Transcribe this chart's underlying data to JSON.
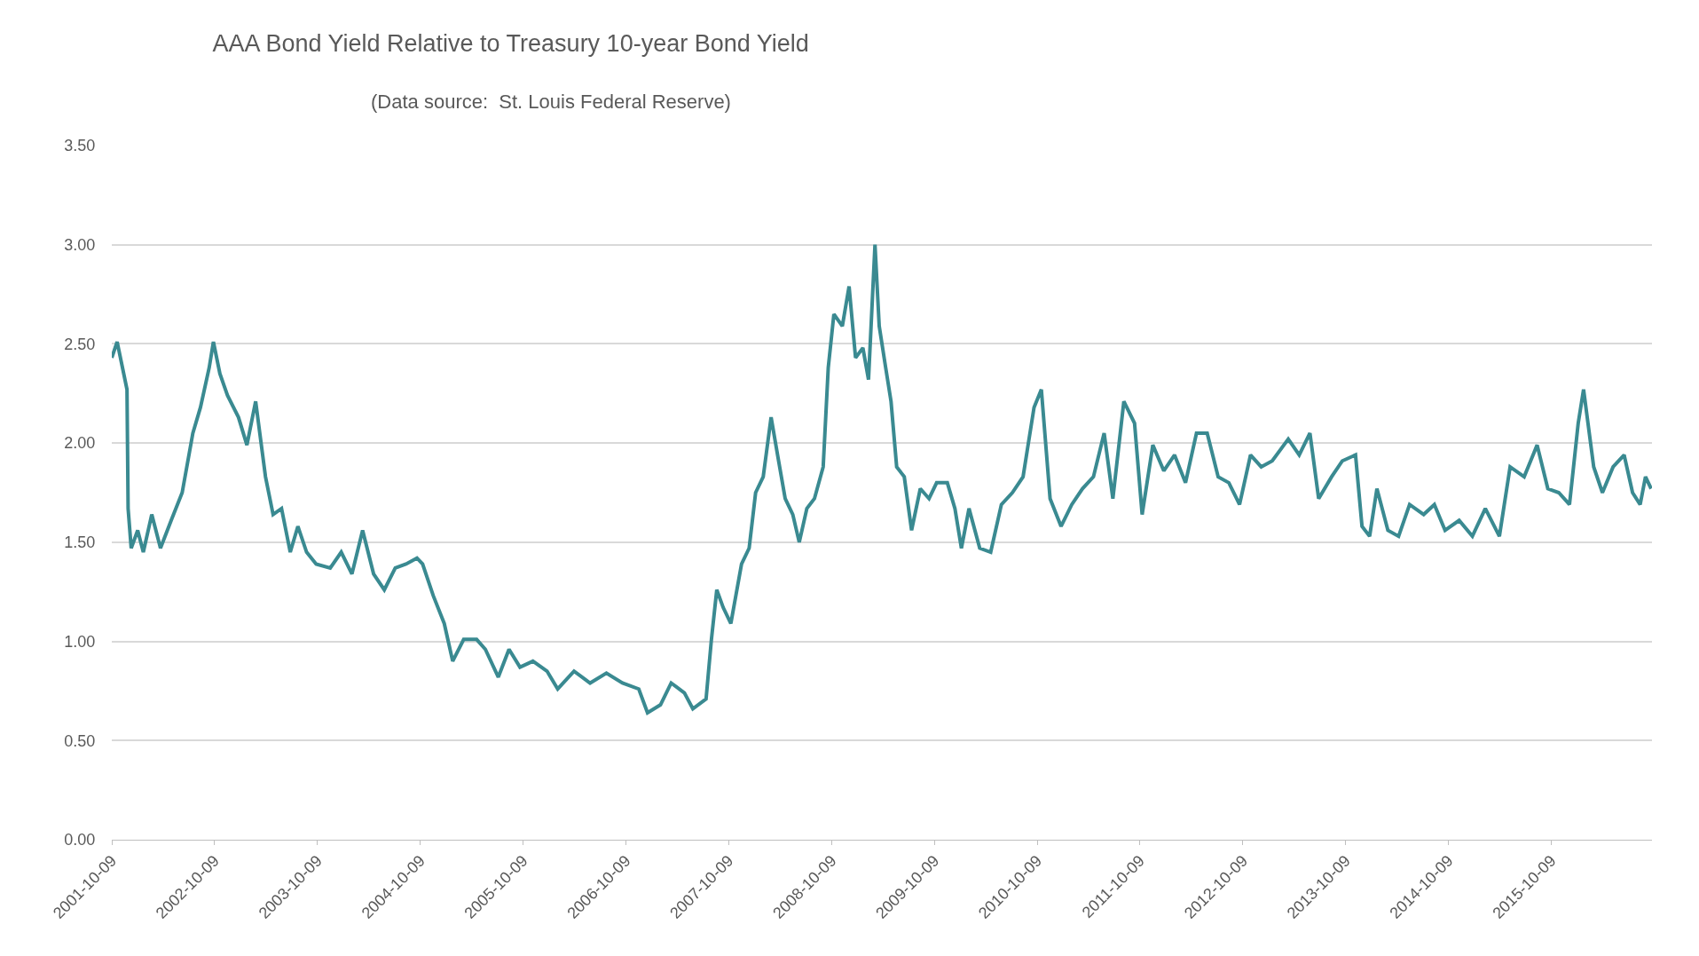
{
  "chart_data": {
    "type": "line",
    "title": "AAA Bond Yield Relative to Treasury 10-year Bond Yield",
    "subtitle": "(Data source:  St. Louis Federal Reserve)",
    "x": [
      "2001-10-09",
      "2001-10-28",
      "2001-11-16",
      "2001-12-02",
      "2001-12-06",
      "2001-12-17",
      "2002-01-09",
      "2002-01-29",
      "2002-02-28",
      "2002-03-31",
      "2002-05-08",
      "2002-06-16",
      "2002-07-24",
      "2002-08-20",
      "2002-09-20",
      "2002-10-05",
      "2002-10-28",
      "2002-11-24",
      "2003-01-02",
      "2003-02-01",
      "2003-03-04",
      "2003-04-08",
      "2003-05-05",
      "2003-06-04",
      "2003-07-05",
      "2003-08-01",
      "2003-09-01",
      "2003-10-05",
      "2003-11-24",
      "2004-01-02",
      "2004-02-09",
      "2004-03-18",
      "2004-04-26",
      "2004-06-03",
      "2004-07-12",
      "2004-08-19",
      "2004-09-27",
      "2004-10-17",
      "2004-11-24",
      "2005-01-02",
      "2005-02-01",
      "2005-03-12",
      "2005-04-27",
      "2005-05-28",
      "2005-07-13",
      "2005-08-20",
      "2005-09-28",
      "2005-11-13",
      "2006-01-02",
      "2006-02-09",
      "2006-04-08",
      "2006-06-04",
      "2006-08-01",
      "2006-09-27",
      "2006-11-24",
      "2006-12-25",
      "2007-02-09",
      "2007-03-19",
      "2007-05-05",
      "2007-06-04",
      "2007-07-21",
      "2007-08-09",
      "2007-08-28",
      "2007-09-20",
      "2007-10-17",
      "2007-11-24",
      "2007-12-21",
      "2008-01-13",
      "2008-02-09",
      "2008-03-08",
      "2008-03-31",
      "2008-04-27",
      "2008-05-24",
      "2008-06-16",
      "2008-07-13",
      "2008-08-09",
      "2008-09-09",
      "2008-09-27",
      "2008-10-17",
      "2008-11-16",
      "2008-12-10",
      "2009-01-02",
      "2009-01-28",
      "2009-02-17",
      "2009-03-12",
      "2009-03-27",
      "2009-04-19",
      "2009-05-08",
      "2009-05-28",
      "2009-06-24",
      "2009-07-20",
      "2009-08-20",
      "2009-09-20",
      "2009-10-17",
      "2009-11-24",
      "2009-12-21",
      "2010-01-13",
      "2010-02-09",
      "2010-03-19",
      "2010-04-27",
      "2010-06-04",
      "2010-07-13",
      "2010-08-20",
      "2010-09-28",
      "2010-10-24",
      "2010-11-24",
      "2011-01-02",
      "2011-02-09",
      "2011-03-19",
      "2011-04-27",
      "2011-06-04",
      "2011-07-05",
      "2011-08-13",
      "2011-09-20",
      "2011-10-17",
      "2011-11-24",
      "2012-01-02",
      "2012-02-09",
      "2012-03-19",
      "2012-04-27",
      "2012-06-04",
      "2012-07-13",
      "2012-08-20",
      "2012-09-27",
      "2012-11-05",
      "2012-12-13",
      "2013-01-21",
      "2013-03-19",
      "2013-04-27",
      "2013-06-04",
      "2013-07-05",
      "2013-08-20",
      "2013-09-27",
      "2013-11-13",
      "2013-12-06",
      "2014-01-02",
      "2014-01-28",
      "2014-03-08",
      "2014-04-15",
      "2014-05-24",
      "2014-07-13",
      "2014-08-20",
      "2014-09-27",
      "2014-11-16",
      "2015-01-02",
      "2015-02-17",
      "2015-04-08",
      "2015-05-16",
      "2015-07-05",
      "2015-08-20",
      "2015-09-27",
      "2015-11-05",
      "2015-12-13",
      "2016-01-13",
      "2016-02-01",
      "2016-03-08",
      "2016-04-08",
      "2016-05-16",
      "2016-06-24",
      "2016-07-24",
      "2016-08-20",
      "2016-09-08",
      "2016-09-28"
    ],
    "series": [
      {
        "color": "#3a8a91",
        "values": [
          2.43,
          2.51,
          2.38,
          2.27,
          1.67,
          1.47,
          1.56,
          1.45,
          1.64,
          1.47,
          1.61,
          1.75,
          2.05,
          2.18,
          2.38,
          2.51,
          2.35,
          2.24,
          2.13,
          1.99,
          2.21,
          1.83,
          1.64,
          1.67,
          1.45,
          1.58,
          1.45,
          1.39,
          1.37,
          1.45,
          1.34,
          1.56,
          1.34,
          1.26,
          1.37,
          1.39,
          1.42,
          1.39,
          1.23,
          1.09,
          0.9,
          1.01,
          1.01,
          0.96,
          0.82,
          0.96,
          0.87,
          0.9,
          0.85,
          0.76,
          0.85,
          0.79,
          0.84,
          0.79,
          0.76,
          0.64,
          0.68,
          0.79,
          0.74,
          0.66,
          0.71,
          1.01,
          1.26,
          1.17,
          1.09,
          1.39,
          1.47,
          1.75,
          1.83,
          2.13,
          1.94,
          1.72,
          1.64,
          1.5,
          1.67,
          1.72,
          1.88,
          2.38,
          2.65,
          2.59,
          2.79,
          2.43,
          2.48,
          2.32,
          3.0,
          2.59,
          2.38,
          2.21,
          1.88,
          1.83,
          1.56,
          1.77,
          1.72,
          1.8,
          1.8,
          1.67,
          1.47,
          1.67,
          1.47,
          1.45,
          1.69,
          1.75,
          1.83,
          2.18,
          2.27,
          1.72,
          1.58,
          1.69,
          1.77,
          1.83,
          2.05,
          1.72,
          2.21,
          2.1,
          1.64,
          1.99,
          1.86,
          1.94,
          1.8,
          2.05,
          2.05,
          1.83,
          1.8,
          1.69,
          1.94,
          1.88,
          1.91,
          2.02,
          1.94,
          2.05,
          1.72,
          1.83,
          1.91,
          1.94,
          1.58,
          1.53,
          1.77,
          1.56,
          1.53,
          1.69,
          1.64,
          1.69,
          1.56,
          1.61,
          1.53,
          1.67,
          1.53,
          1.88,
          1.83,
          1.99,
          1.77,
          1.75,
          1.69,
          2.1,
          2.27,
          1.88,
          1.75,
          1.88,
          1.94,
          1.75,
          1.69,
          1.83,
          1.77
        ]
      }
    ],
    "xlim": [
      "2001-10-09",
      "2016-10-01"
    ],
    "xticks": [
      "2001-10-09",
      "2002-10-09",
      "2003-10-09",
      "2004-10-09",
      "2005-10-09",
      "2006-10-09",
      "2007-10-09",
      "2008-10-09",
      "2009-10-09",
      "2010-10-09",
      "2011-10-09",
      "2012-10-09",
      "2013-10-09",
      "2014-10-09",
      "2015-10-09"
    ],
    "ylim": [
      0,
      3.5
    ],
    "yticks": [
      {
        "value": 0,
        "label": "0.00"
      },
      {
        "value": 0.5,
        "label": "0.50"
      },
      {
        "value": 1,
        "label": "1.00"
      },
      {
        "value": 1.5,
        "label": "1.50"
      },
      {
        "value": 2,
        "label": "2.00"
      },
      {
        "value": 2.5,
        "label": "2.50"
      },
      {
        "value": 3,
        "label": "3.00"
      },
      {
        "value": 3.5,
        "label": "3.50"
      }
    ],
    "grid": "y",
    "marker": "none",
    "line_style": "solid"
  }
}
